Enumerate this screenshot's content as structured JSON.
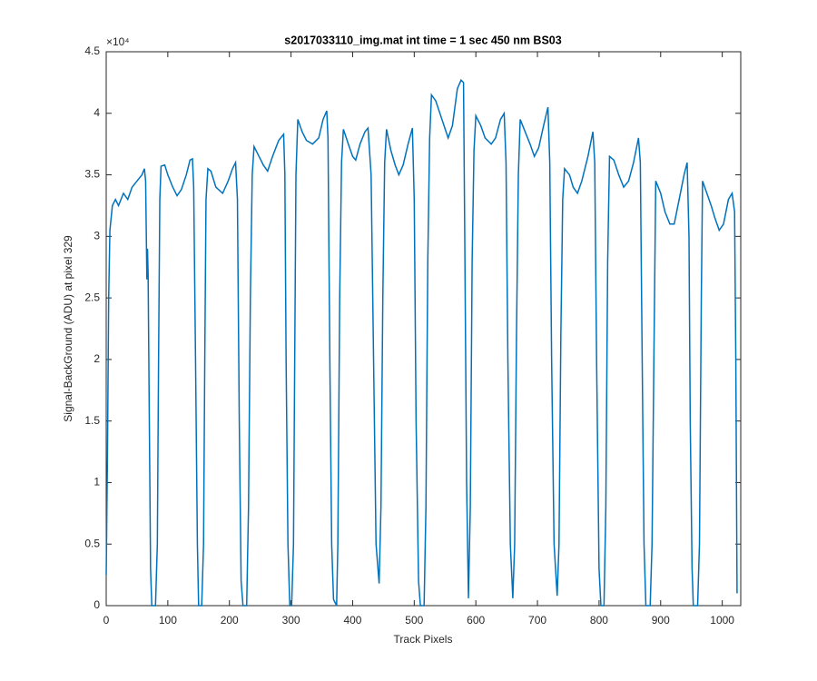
{
  "chart_data": {
    "type": "line",
    "title": "s2017033110_img.mat int time = 1 sec  450 nm BS03",
    "x_label": "Track Pixels",
    "y_label": "Signal-BackGround (ADU) at pixel 329",
    "y_multiplier": "×10⁴",
    "xlim": [
      0,
      1030
    ],
    "ylim": [
      0,
      45000
    ],
    "xticks": [
      0,
      100,
      200,
      300,
      400,
      500,
      600,
      700,
      800,
      900,
      1000
    ],
    "yticks": [
      {
        "value": 0,
        "label": "0"
      },
      {
        "value": 5000,
        "label": "0.5"
      },
      {
        "value": 10000,
        "label": "1"
      },
      {
        "value": 15000,
        "label": "1.5"
      },
      {
        "value": 20000,
        "label": "2"
      },
      {
        "value": 25000,
        "label": "2.5"
      },
      {
        "value": 30000,
        "label": "3"
      },
      {
        "value": 35000,
        "label": "3.5"
      },
      {
        "value": 40000,
        "label": "4"
      },
      {
        "value": 45000,
        "label": "4.5"
      }
    ],
    "grid": false,
    "series": [
      {
        "color": "#0072bd",
        "x": [
          0,
          2,
          4,
          6,
          10,
          15,
          20,
          28,
          35,
          42,
          50,
          58,
          62,
          64,
          66,
          67,
          68,
          70,
          72,
          74,
          80,
          83,
          85,
          87,
          89,
          95,
          100,
          108,
          115,
          122,
          130,
          136,
          140,
          142,
          145,
          148,
          150,
          155,
          158,
          160,
          162,
          165,
          170,
          178,
          189,
          198,
          205,
          210,
          213,
          216,
          219,
          222,
          228,
          231,
          234,
          237,
          240,
          248,
          255,
          262,
          270,
          280,
          288,
          290,
          292,
          295,
          298,
          301,
          304,
          306,
          308,
          311,
          318,
          325,
          335,
          345,
          352,
          358,
          360,
          363,
          366,
          369,
          374,
          376,
          379,
          382,
          385,
          393,
          400,
          405,
          412,
          420,
          425,
          430,
          434,
          438,
          443,
          446,
          449,
          452,
          455,
          462,
          469,
          475,
          482,
          490,
          497,
          500,
          503,
          507,
          510,
          516,
          519,
          522,
          525,
          528,
          535,
          545,
          555,
          562,
          570,
          576,
          580,
          582,
          585,
          588,
          591,
          594,
          597,
          600,
          608,
          615,
          625,
          632,
          640,
          646,
          649,
          652,
          656,
          660,
          663,
          666,
          669,
          672,
          680,
          688,
          695,
          702,
          710,
          717,
          720,
          723,
          727,
          732,
          735,
          738,
          741,
          744,
          752,
          758,
          765,
          772,
          782,
          790,
          793,
          796,
          800,
          803,
          808,
          811,
          814,
          817,
          824,
          832,
          840,
          848,
          856,
          864,
          867,
          870,
          873,
          876,
          883,
          886,
          889,
          892,
          900,
          907,
          915,
          922,
          930,
          938,
          943,
          946,
          948,
          951,
          953,
          960,
          963,
          966,
          968,
          975,
          982,
          988,
          995,
          1002,
          1010,
          1016,
          1020,
          1022,
          1024
        ],
        "values": [
          2500,
          12000,
          25000,
          30500,
          32500,
          33000,
          32500,
          33500,
          33000,
          34000,
          34500,
          35000,
          35500,
          34500,
          26500,
          29000,
          27000,
          15000,
          3000,
          0,
          0,
          5000,
          20000,
          33000,
          35700,
          35800,
          35000,
          34000,
          33300,
          33800,
          35000,
          36200,
          36300,
          34000,
          20000,
          5000,
          0,
          0,
          5000,
          20000,
          33000,
          35500,
          35300,
          34000,
          33500,
          34500,
          35500,
          36000,
          33000,
          15000,
          2000,
          0,
          0,
          8000,
          25000,
          35000,
          37300,
          36500,
          35800,
          35300,
          36500,
          37800,
          38300,
          35000,
          20000,
          5000,
          0,
          0,
          5000,
          20000,
          35000,
          39500,
          38500,
          37800,
          37500,
          38000,
          39500,
          40200,
          38000,
          20000,
          5000,
          500,
          0,
          5000,
          25000,
          36000,
          38700,
          37500,
          36500,
          36200,
          37500,
          38500,
          38800,
          35000,
          20000,
          5000,
          1800,
          8000,
          25000,
          36000,
          38700,
          37000,
          35800,
          35000,
          35800,
          37500,
          38800,
          33000,
          15000,
          2000,
          0,
          0,
          8000,
          28000,
          38000,
          41500,
          41000,
          39500,
          38000,
          39000,
          42000,
          42700,
          42500,
          30000,
          10000,
          600,
          8000,
          28000,
          37000,
          39800,
          39000,
          38000,
          37500,
          38000,
          39500,
          40000,
          36000,
          20000,
          5000,
          600,
          5000,
          22000,
          35000,
          39500,
          38500,
          37500,
          36500,
          37200,
          39000,
          40500,
          36000,
          20000,
          5000,
          800,
          5000,
          22000,
          33000,
          35500,
          35000,
          34000,
          33500,
          34500,
          36500,
          38500,
          36000,
          20000,
          3000,
          0,
          0,
          8000,
          28000,
          36500,
          36200,
          35000,
          34000,
          34500,
          36000,
          38000,
          36000,
          20000,
          5000,
          0,
          0,
          5000,
          20000,
          34500,
          33500,
          32000,
          31000,
          31000,
          33000,
          35000,
          36000,
          30000,
          15000,
          3000,
          0,
          0,
          5000,
          25000,
          34500,
          33500,
          32500,
          31500,
          30500,
          31000,
          33000,
          33500,
          32000,
          20000,
          1000
        ]
      }
    ]
  }
}
